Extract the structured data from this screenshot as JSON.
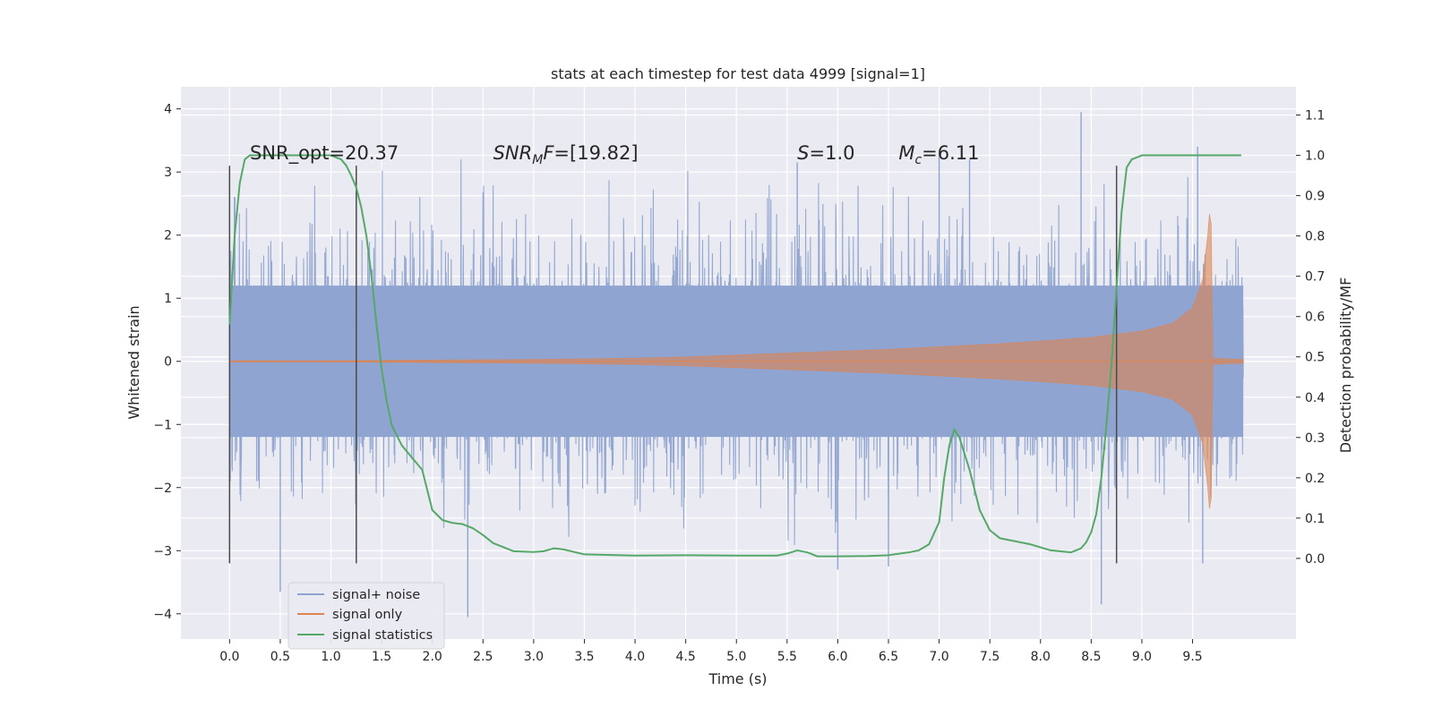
{
  "chart_data": {
    "type": "line",
    "title": "stats at each timestep for test data 4999 [signal=1]",
    "xlabel": "Time (s)",
    "ylabel": "Whitened strain",
    "y2label": "Detection probability/MF",
    "xlim": [
      -0.48,
      10.52
    ],
    "ylim": [
      -4.4,
      4.35
    ],
    "y2lim": [
      -0.2,
      1.17
    ],
    "x_ticks": [
      0.0,
      0.5,
      1.0,
      1.5,
      2.0,
      2.5,
      3.0,
      3.5,
      4.0,
      4.5,
      5.0,
      5.5,
      6.0,
      6.5,
      7.0,
      7.5,
      8.0,
      8.5,
      9.0,
      9.5
    ],
    "x_tick_labels": [
      "0.0",
      "0.5",
      "1.0",
      "1.5",
      "2.0",
      "2.5",
      "3.0",
      "3.5",
      "4.0",
      "4.5",
      "5.0",
      "5.5",
      "6.0",
      "6.5",
      "7.0",
      "7.5",
      "8.0",
      "8.5",
      "9.0",
      "9.5"
    ],
    "y_ticks": [
      -4,
      -3,
      -2,
      -1,
      0,
      1,
      2,
      3,
      4
    ],
    "y_tick_labels": [
      "−4",
      "−3",
      "−2",
      "−1",
      "0",
      "1",
      "2",
      "3",
      "4"
    ],
    "y2_ticks": [
      0.0,
      0.1,
      0.2,
      0.3,
      0.4,
      0.5,
      0.6,
      0.7,
      0.8,
      0.9,
      1.0,
      1.1
    ],
    "y2_tick_labels": [
      "0.0",
      "0.1",
      "0.2",
      "0.3",
      "0.4",
      "0.5",
      "0.6",
      "0.7",
      "0.8",
      "0.9",
      "1.0",
      "1.1"
    ],
    "grid": true,
    "legend_position": "lower-left",
    "series": [
      {
        "name": "signal+ noise",
        "color": "#8fa4d0",
        "x_range": [
          0.0,
          10.0
        ],
        "baseline_band": [
          -1.2,
          1.2
        ],
        "noise_peak_events": [
          {
            "x": 0.5,
            "y": -3.65
          },
          {
            "x": 2.35,
            "y": -4.05
          },
          {
            "x": 5.6,
            "y": 3.15
          },
          {
            "x": 6.0,
            "y": -3.3
          },
          {
            "x": 6.5,
            "y": -3.25
          },
          {
            "x": 7.0,
            "y": 3.3
          },
          {
            "x": 7.3,
            "y": 3.2
          },
          {
            "x": 8.4,
            "y": 3.95
          },
          {
            "x": 8.6,
            "y": -3.85
          },
          {
            "x": 9.55,
            "y": 3.4
          },
          {
            "x": 9.6,
            "y": -3.2
          }
        ]
      },
      {
        "name": "signal only",
        "color": "#dd8452",
        "x": [
          0.0,
          1.0,
          2.0,
          3.0,
          4.0,
          4.5,
          5.0,
          5.5,
          6.0,
          6.5,
          7.0,
          7.5,
          8.0,
          8.5,
          9.0,
          9.3,
          9.5,
          9.6,
          9.65,
          9.68,
          9.7,
          10.0
        ],
        "amplitude": [
          0.01,
          0.01,
          0.02,
          0.03,
          0.05,
          0.07,
          0.1,
          0.13,
          0.16,
          0.19,
          0.23,
          0.27,
          0.32,
          0.38,
          0.48,
          0.6,
          0.85,
          1.3,
          2.0,
          2.6,
          0.05,
          0.03
        ]
      },
      {
        "name": "signal statistics",
        "color": "#55a868",
        "axis": "right",
        "x": [
          0.0,
          0.05,
          0.1,
          0.15,
          0.2,
          0.3,
          0.5,
          0.8,
          1.0,
          1.1,
          1.15,
          1.2,
          1.25,
          1.3,
          1.35,
          1.4,
          1.45,
          1.5,
          1.55,
          1.6,
          1.7,
          1.8,
          1.9,
          2.0,
          2.1,
          2.2,
          2.3,
          2.4,
          2.5,
          2.6,
          2.8,
          3.0,
          3.1,
          3.2,
          3.3,
          3.5,
          4.0,
          4.5,
          5.0,
          5.4,
          5.5,
          5.6,
          5.7,
          5.8,
          6.0,
          6.3,
          6.5,
          6.7,
          6.8,
          6.9,
          7.0,
          7.05,
          7.1,
          7.15,
          7.2,
          7.3,
          7.4,
          7.5,
          7.6,
          7.7,
          7.9,
          8.1,
          8.3,
          8.4,
          8.45,
          8.5,
          8.55,
          8.6,
          8.65,
          8.7,
          8.75,
          8.8,
          8.85,
          8.9,
          9.0,
          9.5,
          9.98
        ],
        "y": [
          0.58,
          0.8,
          0.93,
          0.99,
          1.0,
          1.0,
          1.0,
          1.0,
          1.0,
          0.99,
          0.975,
          0.95,
          0.92,
          0.87,
          0.8,
          0.7,
          0.58,
          0.47,
          0.39,
          0.33,
          0.28,
          0.25,
          0.22,
          0.12,
          0.095,
          0.088,
          0.085,
          0.075,
          0.058,
          0.038,
          0.018,
          0.016,
          0.018,
          0.025,
          0.022,
          0.01,
          0.007,
          0.008,
          0.007,
          0.007,
          0.012,
          0.02,
          0.015,
          0.005,
          0.005,
          0.006,
          0.008,
          0.015,
          0.02,
          0.035,
          0.09,
          0.2,
          0.28,
          0.32,
          0.3,
          0.22,
          0.12,
          0.07,
          0.05,
          0.045,
          0.035,
          0.02,
          0.015,
          0.025,
          0.04,
          0.065,
          0.11,
          0.2,
          0.33,
          0.48,
          0.67,
          0.86,
          0.97,
          0.99,
          1.0,
          1.0,
          1.0
        ]
      }
    ],
    "vertical_lines": {
      "color": "#4a4a4a",
      "x": [
        0.0,
        1.25,
        8.75
      ],
      "y_range": [
        -3.2,
        3.1
      ]
    },
    "annotations": [
      {
        "id": "snr-opt",
        "x": 0.2,
        "y": 3.2,
        "text": "SNR_opt=20.37"
      },
      {
        "id": "snr-mf",
        "x": 2.6,
        "y": 3.2,
        "symbol": "SNR",
        "subscript": "M",
        "after": "F=[19.82]"
      },
      {
        "id": "s-value",
        "x": 5.6,
        "y": 3.2,
        "symbol": "S",
        "subscript": "",
        "after": "=1.0"
      },
      {
        "id": "mc-value",
        "x": 6.6,
        "y": 3.2,
        "symbol": "M",
        "subscript": "c",
        "after": "=6.11"
      }
    ],
    "legend": [
      "signal+ noise",
      "signal only",
      "signal statistics"
    ]
  }
}
